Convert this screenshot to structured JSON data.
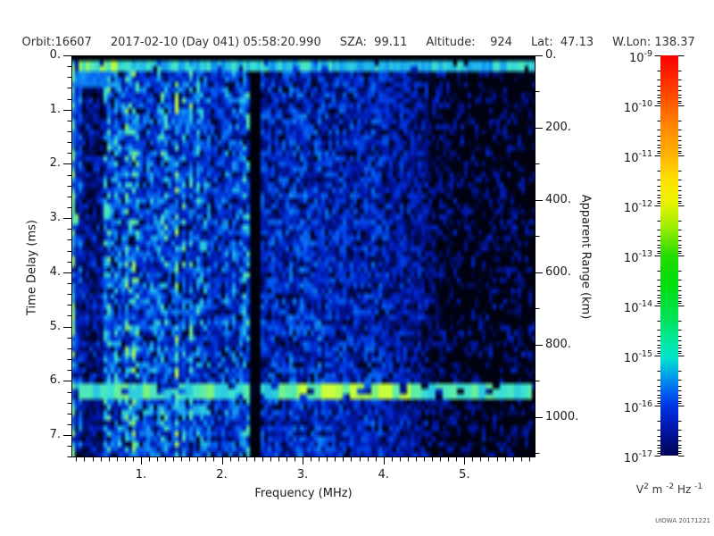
{
  "header": {
    "segments": [
      "Orbit:16607",
      "2017-02-10 (Day 041) 05:58:20.990",
      "SZA:  99.11",
      "Altitude:    924",
      "Lat:  47.13",
      "W.Lon: 138.37"
    ]
  },
  "footer": {
    "credit": "UIOWA 20171221"
  },
  "chart_data": {
    "type": "heatmap",
    "title": "",
    "xlabel": "Frequency (MHz)",
    "ylabel_left": "Time Delay (ms)",
    "ylabel_right": "Apparent Range (km)",
    "x_range": [
      0.14,
      5.88
    ],
    "y_range": [
      0,
      7.41
    ],
    "right_axis_km_per_ms": 150,
    "x_ticks": {
      "values": [
        1,
        2,
        3,
        4,
        5
      ],
      "labels": [
        "1.",
        "2.",
        "3.",
        "4.",
        "5."
      ],
      "minor_step": 0.1
    },
    "y_ticks": {
      "values": [
        0,
        1,
        2,
        3,
        4,
        5,
        6,
        7
      ],
      "labels": [
        "0.",
        "1.",
        "2.",
        "3.",
        "4.",
        "5.",
        "6.",
        "7."
      ],
      "minor_step": 0.2
    },
    "right_ticks": {
      "values": [
        0,
        200,
        400,
        600,
        800,
        1000
      ],
      "labels": [
        "0.",
        "200.",
        "400.",
        "600.",
        "800.",
        "1000."
      ],
      "minor_step": 100,
      "minor_max": 1100
    },
    "colorbar": {
      "base": "10",
      "tick_exponents": [
        -9,
        -10,
        -11,
        -12,
        -13,
        -14,
        -15,
        -16,
        -17
      ],
      "unit_parts": [
        [
          "V",
          false
        ],
        [
          "2",
          true
        ],
        [
          " m ",
          false
        ],
        [
          "-2",
          true
        ],
        [
          " Hz ",
          false
        ],
        [
          "-1",
          true
        ]
      ],
      "gradient_stops": [
        [
          0,
          "#fb0000"
        ],
        [
          0.065,
          "#ff2e00"
        ],
        [
          0.125,
          "#ff5f00"
        ],
        [
          0.19,
          "#ff8f00"
        ],
        [
          0.25,
          "#ffb300"
        ],
        [
          0.31,
          "#fee000"
        ],
        [
          0.36,
          "#f1f400"
        ],
        [
          0.43,
          "#9cee00"
        ],
        [
          0.5,
          "#26dc00"
        ],
        [
          0.57,
          "#00dd0c"
        ],
        [
          0.655,
          "#00e354"
        ],
        [
          0.72,
          "#00e9a5"
        ],
        [
          0.755,
          "#00e3cb"
        ],
        [
          0.8,
          "#009fe8"
        ],
        [
          0.845,
          "#005cf0"
        ],
        [
          0.875,
          "#0036e6"
        ],
        [
          0.93,
          "#0017ad"
        ],
        [
          1,
          "#000455"
        ]
      ]
    },
    "heatmap": {
      "seed": 1337,
      "grid": [
        130,
        76
      ],
      "sparse_start": 4.45,
      "freq_bands": [
        [
          0.14,
          0.19,
          0.46
        ],
        [
          0.19,
          0.28,
          0.3
        ],
        [
          0.28,
          0.52,
          0.4
        ],
        [
          0.52,
          1.0,
          0.46
        ],
        [
          1.0,
          1.85,
          0.44
        ],
        [
          1.85,
          2.34,
          0.38
        ],
        [
          2.34,
          2.46,
          0.35
        ],
        [
          2.46,
          3.3,
          0.36
        ],
        [
          3.3,
          4.1,
          0.3
        ],
        [
          4.1,
          4.55,
          0.24
        ],
        [
          4.55,
          5.88,
          0.18
        ]
      ],
      "value_colormap": [
        [
          0,
          "#000004"
        ],
        [
          0.08,
          "#000b4e"
        ],
        [
          0.18,
          "#0016a8"
        ],
        [
          0.3,
          "#0030d8"
        ],
        [
          0.42,
          "#0455ee"
        ],
        [
          0.54,
          "#0d84f2"
        ],
        [
          0.64,
          "#1fb6ed"
        ],
        [
          0.74,
          "#3be3d2"
        ],
        [
          0.84,
          "#63efa0"
        ],
        [
          0.92,
          "#93f55f"
        ],
        [
          1,
          "#c8ff3a"
        ]
      ]
    },
    "features": [
      {
        "type": "dark_band_v",
        "f": [
          0.28,
          0.52
        ],
        "factor": 0.4
      },
      {
        "type": "blob",
        "t": [
          0.26,
          0.55
        ],
        "f": [
          0.19,
          0.62
        ],
        "intensity": 0.5
      },
      {
        "type": "bright_line_v",
        "f": [
          0.14,
          0.185
        ],
        "boost": 0.3
      },
      {
        "type": "bright_line_v",
        "f": [
          1.4,
          1.48
        ],
        "boost": 0.2
      },
      {
        "type": "echo_line",
        "t": [
          6.08,
          6.3
        ],
        "f": [
          0.2,
          5.85
        ],
        "intensity": 0.78,
        "gap_prob": 0.18,
        "boost_f": [
          2.9,
          4.35
        ]
      },
      {
        "type": "echo_line",
        "t": [
          6.42,
          6.64
        ],
        "f": [
          0.75,
          1.85
        ],
        "intensity": 0.62,
        "gap_prob": 0.32
      },
      {
        "type": "blob",
        "t": [
          2.88,
          3.14
        ],
        "f": [
          0.14,
          0.23
        ],
        "intensity": 0.82
      },
      {
        "type": "black_line_v",
        "f": [
          2.34,
          2.46
        ]
      },
      {
        "type": "bright_line_h",
        "t": [
          0.1,
          0.26
        ],
        "f": [
          0.14,
          5.88
        ],
        "intensity": 0.68,
        "green_below_f": 0.7
      },
      {
        "type": "black_band",
        "t": [
          0,
          0.1
        ],
        "f": [
          0.14,
          5.88
        ]
      }
    ]
  }
}
